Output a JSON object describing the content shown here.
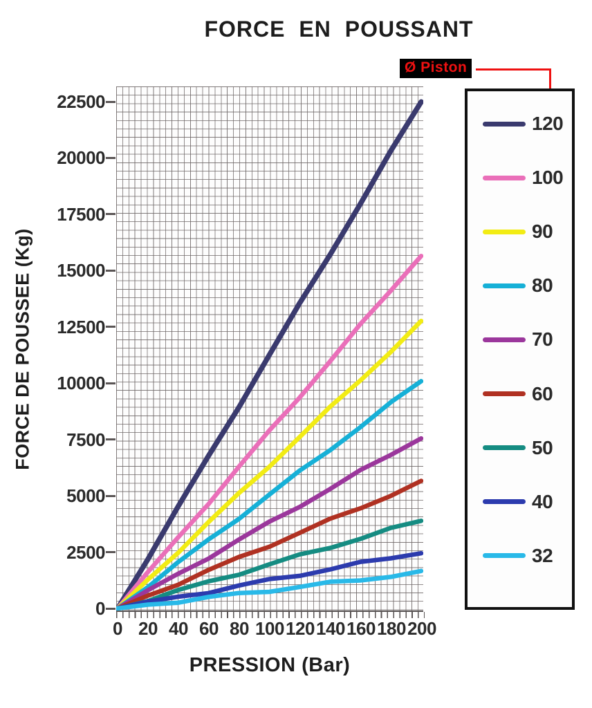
{
  "title": "FORCE EN POUSSANT",
  "annotation": {
    "label": "Ø Piston",
    "text_color": "#ee1111",
    "background": "#000000",
    "pointer_color": "#ee1111"
  },
  "chart_data": {
    "type": "line",
    "title": "FORCE EN POUSSANT",
    "xlabel": "PRESSION (Bar)",
    "ylabel": "FORCE DE POUSSEE (Kg)",
    "xlim": [
      0,
      200
    ],
    "ylim": [
      0,
      23000
    ],
    "grid": "graph-paper",
    "legend_title": "Ø Piston",
    "legend_position": "right",
    "xticks": [
      0,
      20,
      40,
      60,
      80,
      100,
      120,
      140,
      160,
      180,
      200
    ],
    "yticks": [
      0,
      2500,
      5000,
      7500,
      10000,
      12500,
      15000,
      17500,
      20000,
      22500
    ],
    "x": [
      0,
      20,
      40,
      60,
      80,
      100,
      120,
      140,
      160,
      180,
      200
    ],
    "series": [
      {
        "name": "120",
        "color": "#3a3a6e",
        "values": [
          0,
          2250,
          4500,
          6750,
          9000,
          11250,
          13500,
          15750,
          18000,
          20250,
          22500
        ]
      },
      {
        "name": "100",
        "color": "#ea6fb9",
        "values": [
          0,
          1570,
          3140,
          4710,
          6280,
          7850,
          9420,
          10990,
          12560,
          14130,
          15700
        ]
      },
      {
        "name": "90",
        "color": "#f2ec14",
        "values": [
          0,
          1270,
          2540,
          3810,
          5080,
          6350,
          7620,
          8890,
          10160,
          11430,
          12700
        ]
      },
      {
        "name": "80",
        "color": "#16b0d7",
        "values": [
          0,
          1010,
          2020,
          3030,
          4040,
          5050,
          6060,
          7070,
          8080,
          9090,
          10100
        ]
      },
      {
        "name": "70",
        "color": "#9b379c",
        "values": [
          0,
          760,
          1520,
          2280,
          3040,
          3800,
          4560,
          5320,
          6080,
          6840,
          7600
        ]
      },
      {
        "name": "60",
        "color": "#b03122",
        "values": [
          0,
          560,
          1120,
          1680,
          2240,
          2800,
          3360,
          3920,
          4480,
          5040,
          5600
        ]
      },
      {
        "name": "50",
        "color": "#158c82",
        "values": [
          0,
          390,
          780,
          1170,
          1560,
          1950,
          2340,
          2730,
          3120,
          3510,
          3900
        ]
      },
      {
        "name": "40",
        "color": "#2c3bae",
        "values": [
          0,
          250,
          500,
          750,
          1000,
          1250,
          1500,
          1750,
          2000,
          2250,
          2500
        ]
      },
      {
        "name": "32",
        "color": "#29b9e8",
        "values": [
          0,
          160,
          320,
          480,
          640,
          800,
          960,
          1120,
          1280,
          1440,
          1600
        ]
      }
    ]
  }
}
